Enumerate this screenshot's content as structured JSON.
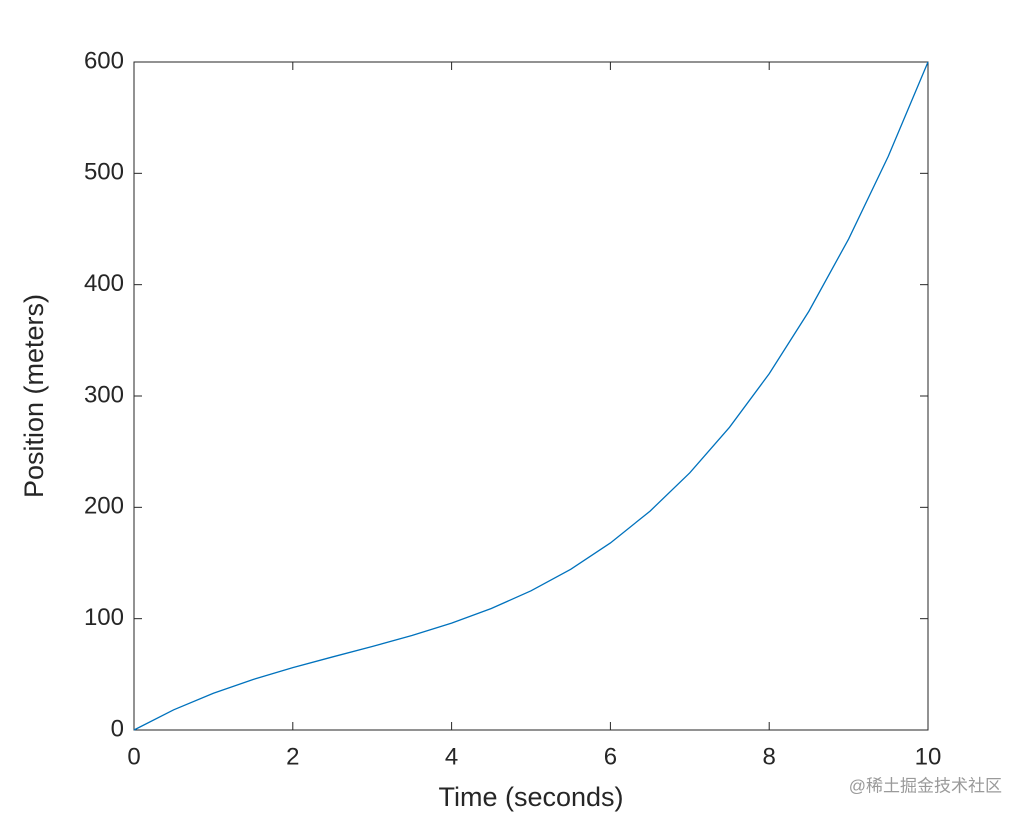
{
  "chart_data": {
    "type": "line",
    "x_label": "Time (seconds)",
    "y_label": "Position (meters)",
    "x": [
      0,
      0.5,
      1,
      1.5,
      2,
      2.5,
      3,
      3.5,
      4,
      4.5,
      5,
      5.5,
      6,
      6.5,
      7,
      7.5,
      8,
      8.5,
      9,
      9.5,
      10
    ],
    "series": [
      {
        "color": "#0072bd",
        "values": [
          0,
          18.125,
          33,
          45.375,
          56,
          65.625,
          75,
          84.875,
          96,
          109.125,
          125,
          144.375,
          168,
          196.625,
          231,
          271.875,
          320,
          376.125,
          441,
          515.375,
          600
        ]
      }
    ],
    "xlim": [
      0,
      10
    ],
    "xticks": [
      0,
      2,
      4,
      6,
      8,
      10
    ],
    "ylim": [
      0,
      600
    ],
    "yticks": [
      0,
      100,
      200,
      300,
      400,
      500,
      600
    ],
    "grid": false
  },
  "watermark": "@稀土掘金技术社区"
}
